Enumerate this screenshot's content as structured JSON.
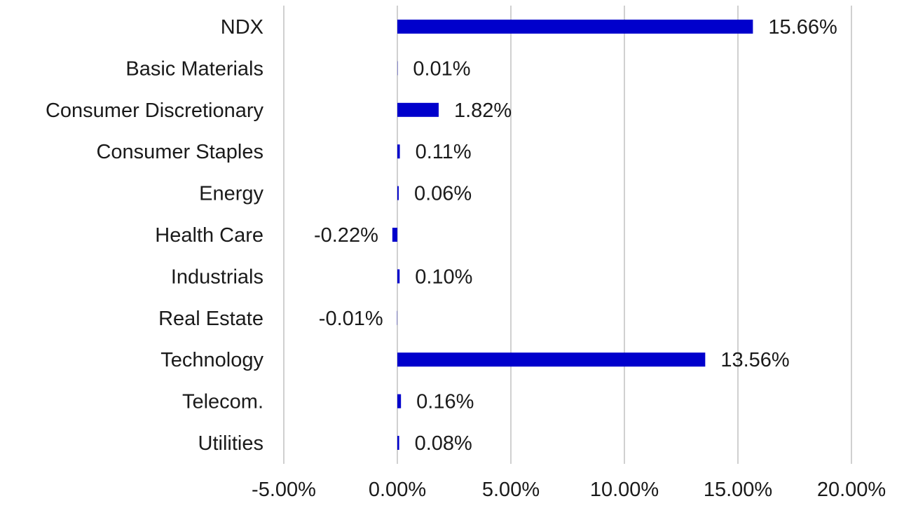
{
  "chart_data": {
    "type": "bar",
    "orientation": "horizontal",
    "categories": [
      "NDX",
      "Basic Materials",
      "Consumer Discretionary",
      "Consumer Staples",
      "Energy",
      "Health Care",
      "Industrials",
      "Real Estate",
      "Technology",
      "Telecom.",
      "Utilities"
    ],
    "values": [
      15.66,
      0.01,
      1.82,
      0.11,
      0.06,
      -0.22,
      0.1,
      -0.01,
      13.56,
      0.16,
      0.08
    ],
    "value_labels": [
      "15.66%",
      "0.01%",
      "1.82%",
      "0.11%",
      "0.06%",
      "-0.22%",
      "0.10%",
      "-0.01%",
      "13.56%",
      "0.16%",
      "0.08%"
    ],
    "xlim": [
      -5,
      20
    ],
    "x_ticks": [
      -5,
      0,
      5,
      10,
      15,
      20
    ],
    "x_tick_labels": [
      "-5.00%",
      "0.00%",
      "5.00%",
      "10.00%",
      "15.00%",
      "20.00%"
    ],
    "grid": true,
    "grid_axis": "x",
    "legend": "none",
    "title": "",
    "xlabel": "",
    "ylabel": "",
    "bar_color": "#0000CC",
    "grid_color": "#D0D0D0",
    "text_color": "#1a1a1a"
  }
}
